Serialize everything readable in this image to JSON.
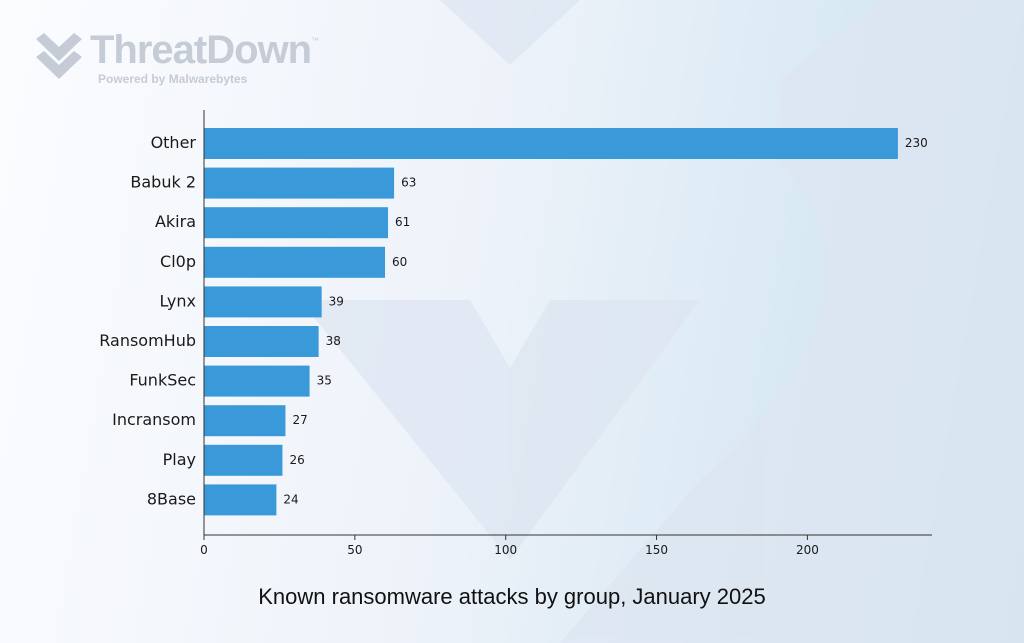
{
  "branding": {
    "name": "ThreatDown",
    "trademark": "™",
    "tagline": "Powered by Malwarebytes",
    "logo_color": "#c5ccd6"
  },
  "colors": {
    "bar": "#3a9ad9",
    "axis": "#333333",
    "background_art": "#dde6f1"
  },
  "chart_data": {
    "type": "bar",
    "orientation": "horizontal",
    "title": "Known ransomware attacks by group, January 2025",
    "categories": [
      "Other",
      "Babuk 2",
      "Akira",
      "Cl0p",
      "Lynx",
      "RansomHub",
      "FunkSec",
      "Incransom",
      "Play",
      "8Base"
    ],
    "values": [
      230,
      63,
      61,
      60,
      39,
      38,
      35,
      27,
      26,
      24
    ],
    "value_labels": [
      "230",
      "63",
      "61",
      "60",
      "39",
      "38",
      "35",
      "27",
      "26",
      "24"
    ],
    "xticks": [
      0,
      50,
      100,
      150,
      200
    ],
    "xtick_labels": [
      "0",
      "50",
      "100",
      "150",
      "200"
    ],
    "xlim": [
      0,
      240
    ],
    "xlabel": "",
    "ylabel": "",
    "grid": false,
    "legend": "none"
  }
}
